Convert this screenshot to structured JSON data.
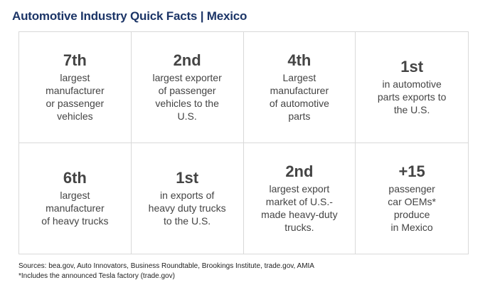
{
  "title": "Automotive Industry Quick Facts | Mexico",
  "facts": [
    {
      "figure": "7th",
      "description": "largest\nmanufacturer\nor passenger\nvehicles"
    },
    {
      "figure": "2nd",
      "description": "largest exporter\nof passenger\nvehicles to the\nU.S."
    },
    {
      "figure": "4th",
      "description": "Largest\nmanufacturer\nof automotive\nparts"
    },
    {
      "figure": "1st",
      "description": "in automotive\nparts exports to\nthe U.S."
    },
    {
      "figure": "6th",
      "description": "largest\nmanufacturer\nof heavy trucks"
    },
    {
      "figure": "1st",
      "description": "in exports of\nheavy duty trucks\nto the U.S."
    },
    {
      "figure": "2nd",
      "description": "largest export\nmarket of U.S.-\nmade heavy-duty\ntrucks."
    },
    {
      "figure": "+15",
      "description": "passenger\ncar OEMs*\nproduce\nin Mexico"
    }
  ],
  "footer": {
    "sources": "Sources: bea.gov, Auto Innovators, Business Roundtable, Brookings Institute, trade.gov, AMIA",
    "note": "*Includes the announced Tesla factory (trade.gov)"
  }
}
